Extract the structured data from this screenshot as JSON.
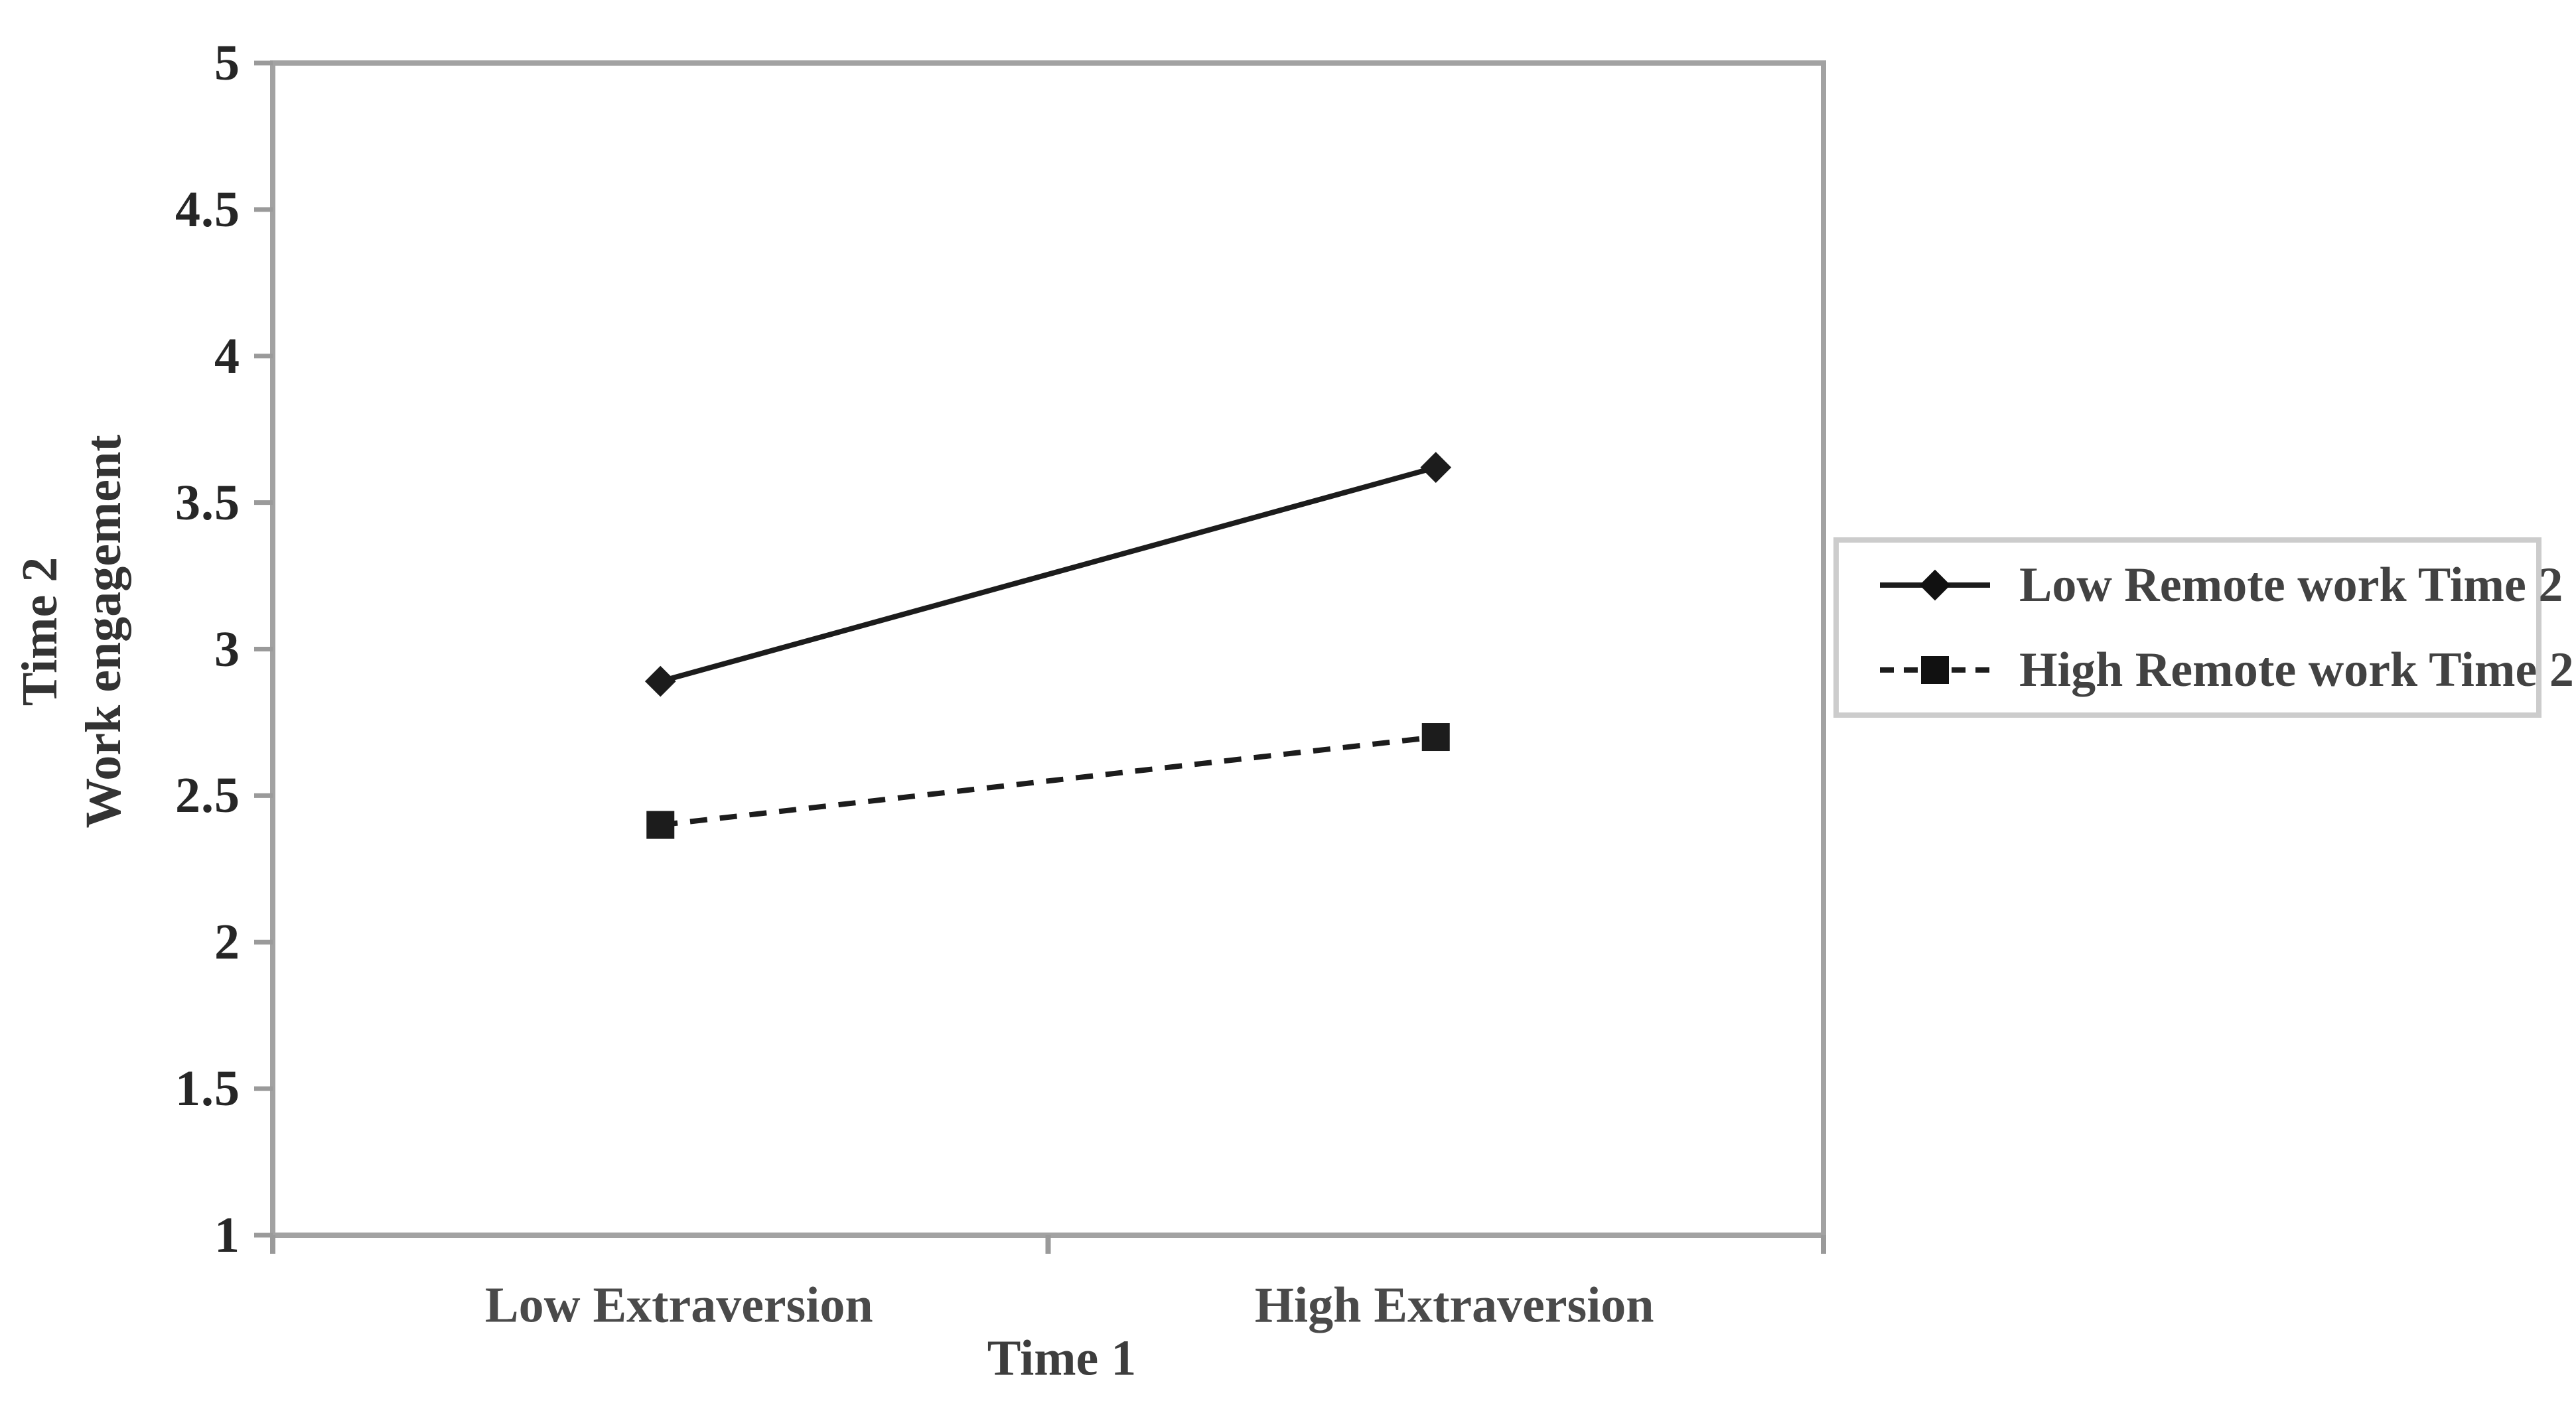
{
  "chart_data": {
    "type": "line",
    "title": "",
    "categories": [
      "Low Extraversion",
      "High Extraversion"
    ],
    "series": [
      {
        "name": "Low Remote work Time 2",
        "values": [
          2.89,
          3.62
        ],
        "line_style": "solid",
        "marker": "diamond"
      },
      {
        "name": "High Remote work Time 2",
        "values": [
          2.4,
          2.7
        ],
        "line_style": "dashed",
        "marker": "square"
      }
    ],
    "xlabel": "Time 1",
    "ylabel_line1": "Time 2",
    "ylabel_line2": "Work engagement",
    "ylim": [
      1,
      5
    ],
    "ytick_step": 0.5,
    "grid": false,
    "legend_position": "right",
    "series_color": "#1c1c1c",
    "axis_color": "#a2a2a2",
    "tick_color": "#9a9a9a",
    "legend_border_color": "#cccccc"
  }
}
